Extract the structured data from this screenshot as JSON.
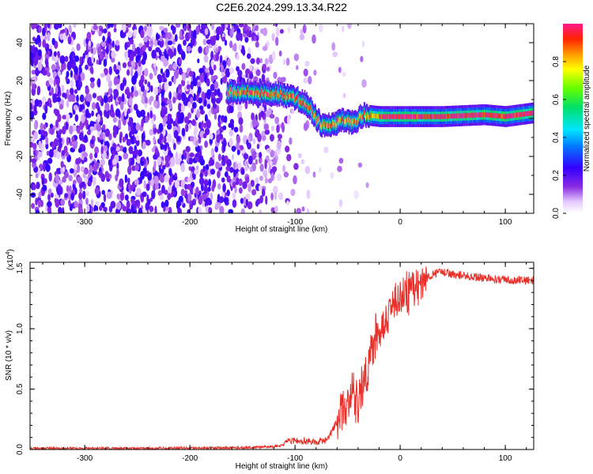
{
  "title": "C2E6.2024.299.13.34.R22",
  "colors": {
    "snr_line": "#e8302a",
    "heat_background": "#ffffff",
    "axis": "#000000"
  },
  "chart_data": [
    {
      "type": "heatmap",
      "xlabel": "Height of straight line (km)",
      "ylabel": "Frequency (Hz)",
      "xlim": [
        -352,
        127
      ],
      "ylim": [
        -50,
        50
      ],
      "x_ticks": [
        -300,
        -200,
        -100,
        0,
        100
      ],
      "y_ticks": [
        -40,
        -20,
        0,
        20,
        40
      ],
      "grid": false,
      "colorbar": {
        "label": "Normalized spectral amplitude",
        "range": [
          0,
          1
        ],
        "ticks": [
          0.0,
          0.2,
          0.4,
          0.6,
          0.8
        ],
        "tick_labels": [
          "0.0",
          "0.2",
          "0.4",
          "0.6",
          "0.8"
        ],
        "colormap": "white-purple-blue-cyan-green-yellow-red-magenta"
      },
      "noise_region": {
        "x_from": -352,
        "x_to": -90,
        "amplitude": "low (0.05–0.25)"
      },
      "signal_track": [
        {
          "x": -165,
          "f": 14
        },
        {
          "x": -150,
          "f": 14
        },
        {
          "x": -130,
          "f": 13
        },
        {
          "x": -115,
          "f": 13
        },
        {
          "x": -100,
          "f": 11
        },
        {
          "x": -90,
          "f": 8
        },
        {
          "x": -82,
          "f": 2
        },
        {
          "x": -75,
          "f": -4
        },
        {
          "x": -65,
          "f": -3
        },
        {
          "x": -55,
          "f": -1
        },
        {
          "x": -45,
          "f": -2
        },
        {
          "x": -35,
          "f": 2
        },
        {
          "x": -20,
          "f": 1
        },
        {
          "x": 0,
          "f": 1
        },
        {
          "x": 40,
          "f": 1
        },
        {
          "x": 80,
          "f": 2
        },
        {
          "x": 100,
          "f": 1
        },
        {
          "x": 127,
          "f": 3
        }
      ]
    },
    {
      "type": "line",
      "xlabel": "Height of straight line (km)",
      "ylabel": "SNR (10 * v/v)",
      "y_multiplier": "(x10^4)",
      "y_multiplier_base": "(x10",
      "y_multiplier_exp": "4",
      "y_multiplier_close": ")",
      "xlim": [
        -352,
        127
      ],
      "ylim": [
        0,
        1.55
      ],
      "x_ticks": [
        -300,
        -200,
        -100,
        0,
        100
      ],
      "y_ticks": [
        0.0,
        0.5,
        1.0,
        1.5
      ],
      "y_tick_labels": [
        "0.0",
        "0.5",
        "1.0",
        "1.5"
      ],
      "grid": false,
      "series": [
        {
          "x": [
            -352,
            -300,
            -250,
            -200,
            -150,
            -120,
            -100,
            -90,
            -80,
            -70,
            -60,
            -55,
            -50,
            -45,
            -40,
            -35,
            -30,
            -25,
            -20,
            -15,
            -10,
            -5,
            0,
            10,
            20,
            30,
            40,
            50,
            60,
            80,
            100,
            127
          ],
          "y": [
            0.005,
            0.005,
            0.005,
            0.008,
            0.012,
            0.02,
            0.05,
            0.04,
            0.03,
            0.05,
            0.2,
            0.3,
            0.35,
            0.5,
            0.4,
            0.55,
            0.7,
            0.9,
            0.95,
            1.1,
            1.18,
            1.2,
            1.25,
            1.3,
            1.38,
            1.45,
            1.47,
            1.45,
            1.44,
            1.42,
            1.4,
            1.4
          ]
        }
      ]
    }
  ]
}
